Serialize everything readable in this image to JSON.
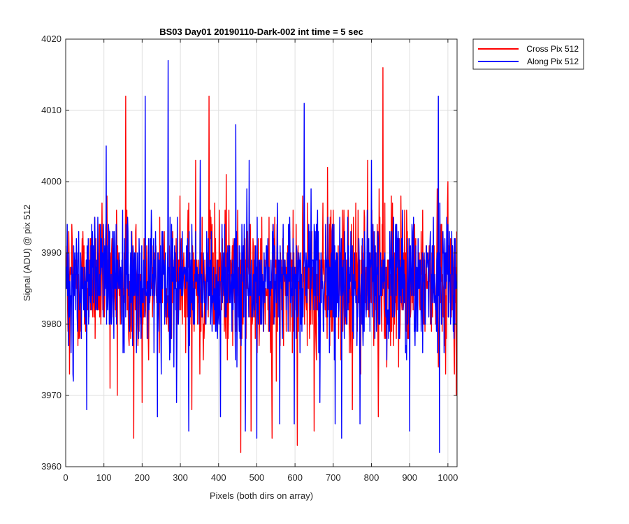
{
  "chart_data": {
    "type": "line",
    "title": "BS03 Day01 20190110-Dark-002 int time = 5 sec",
    "xlabel": "Pixels (both dirs on array)",
    "ylabel": "Signal (ADU) @ pix 512",
    "xlim": [
      0,
      1024
    ],
    "ylim": [
      3960,
      4020
    ],
    "xticks": [
      0,
      100,
      200,
      300,
      400,
      500,
      600,
      700,
      800,
      900,
      1000
    ],
    "yticks": [
      3960,
      3970,
      3980,
      3990,
      4000,
      4010,
      4020
    ],
    "grid": true,
    "legend_position": "outside-top-right",
    "series": [
      {
        "name": "Cross Pix 512",
        "color": "#ff0000",
        "n_points": 1024,
        "baseline": 3986,
        "noise_range": [
          3975,
          3997
        ],
        "x": [
          0,
          10,
          40,
          70,
          95,
          116,
          135,
          157,
          162,
          178,
          200,
          245,
          270,
          292,
          330,
          340,
          360,
          375,
          395,
          420,
          458,
          462,
          485,
          510,
          540,
          570,
          606,
          620,
          640,
          650,
          685,
          720,
          750,
          790,
          818,
          830,
          850,
          880,
          905,
          940,
          975,
          1000,
          1022
        ],
        "y": [
          3991,
          3973,
          3979,
          3982,
          3997,
          3971,
          3970,
          4012,
          3988,
          3964,
          3969,
          3976,
          3981,
          3986,
          3968,
          4003,
          3975,
          4012,
          3984,
          4001,
          3962,
          3990,
          3965,
          3992,
          3964,
          3977,
          3963,
          3998,
          3988,
          3965,
          4002,
          3975,
          3968,
          4003,
          3967,
          4016,
          3977,
          3982,
          3985,
          3979,
          3974,
          4000,
          3970
        ]
      },
      {
        "name": "Along Pix 512",
        "color": "#0000ff",
        "n_points": 1024,
        "baseline": 3986,
        "noise_range": [
          3976,
          3996
        ],
        "x": [
          0,
          8,
          20,
          55,
          72,
          106,
          150,
          185,
          208,
          212,
          240,
          268,
          272,
          290,
          322,
          352,
          405,
          445,
          470,
          480,
          500,
          520,
          560,
          598,
          624,
          630,
          665,
          705,
          722,
          730,
          770,
          800,
          862,
          900,
          940,
          975,
          978,
          990,
          1015
        ],
        "y": [
          3985,
          3990,
          3972,
          3968,
          3991,
          4005,
          3976,
          3976,
          4012,
          3984,
          3967,
          4017,
          3975,
          3969,
          3965,
          4003,
          3967,
          4008,
          3965,
          4003,
          3964,
          3986,
          3966,
          3966,
          4011,
          3988,
          3969,
          3966,
          3964,
          3993,
          3966,
          4003,
          3985,
          3965,
          3980,
          4012,
          3962,
          3976,
          3984
        ]
      }
    ]
  }
}
